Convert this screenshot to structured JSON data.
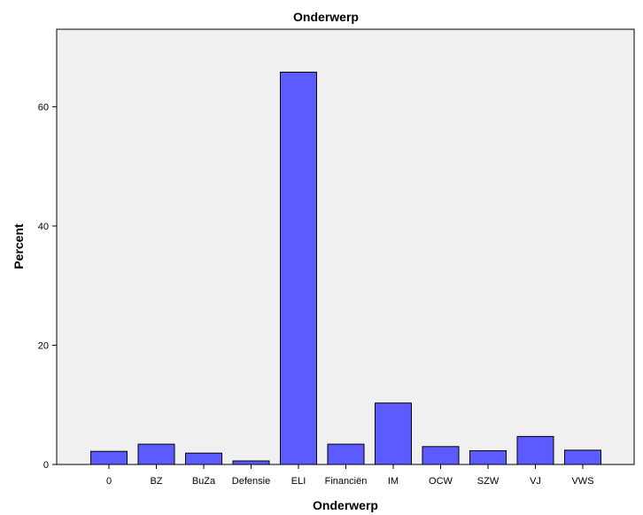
{
  "chart_data": {
    "type": "bar",
    "title": "Onderwerp",
    "xlabel": "Onderwerp",
    "ylabel": "Percent",
    "categories": [
      "0",
      "BZ",
      "BuZa",
      "Defensie",
      "ELI",
      "Financiën",
      "IM",
      "OCW",
      "SZW",
      "VJ",
      "VWS"
    ],
    "values": [
      2.2,
      3.4,
      1.9,
      0.6,
      65.8,
      3.4,
      10.3,
      3.0,
      2.3,
      4.7,
      2.4
    ],
    "ylim": [
      0,
      73
    ],
    "yticks": [
      0,
      20,
      40,
      60
    ],
    "grid": false,
    "colors": {
      "bar_fill": "#5b5bff",
      "bar_stroke": "#000000",
      "plot_background": "#f0f0f0"
    }
  }
}
